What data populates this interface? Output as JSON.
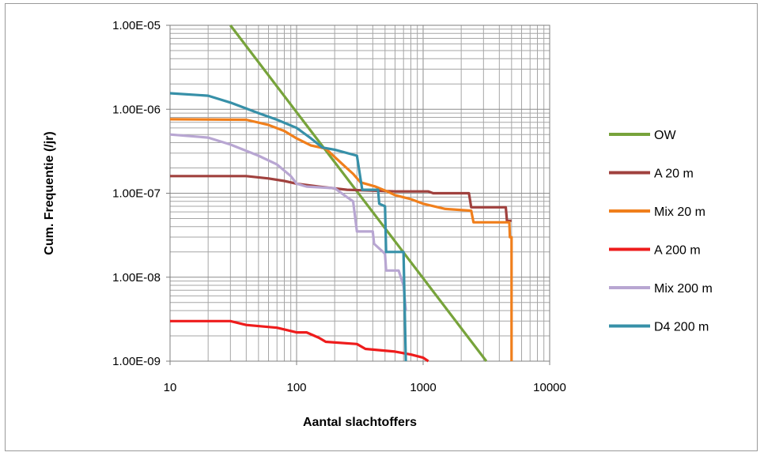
{
  "chart_data": {
    "type": "line",
    "title": "",
    "xlabel": "Aantal slachtoffers",
    "ylabel": "Cum. Frequentie (/jr)",
    "x_scale": "log",
    "y_scale": "log",
    "xlim": [
      10,
      10000
    ],
    "ylim": [
      1e-09,
      1e-05
    ],
    "x_ticks": [
      10,
      100,
      1000,
      10000
    ],
    "x_tick_labels": [
      "10",
      "100",
      "1000",
      "10000"
    ],
    "y_ticks": [
      1e-05,
      1e-06,
      1e-07,
      1e-08,
      1e-09
    ],
    "y_tick_labels": [
      "1.00E-05",
      "1.00E-06",
      "1.00E-07",
      "1.00E-08",
      "1.00E-09"
    ],
    "grid": "major and minor",
    "legend_position": "right",
    "series": [
      {
        "name": "OW",
        "color": "#77a33b",
        "points": [
          [
            30,
            1e-05
          ],
          [
            3160,
            9e-10
          ]
        ]
      },
      {
        "name": "A 20 m",
        "color": "#a0413e",
        "points": [
          [
            10,
            1.6e-07
          ],
          [
            40,
            1.6e-07
          ],
          [
            60,
            1.5e-07
          ],
          [
            80,
            1.4e-07
          ],
          [
            100,
            1.3e-07
          ],
          [
            150,
            1.2e-07
          ],
          [
            250,
            1.1e-07
          ],
          [
            600,
            1.05e-07
          ],
          [
            1100,
            1.05e-07
          ],
          [
            1200,
            1e-07
          ],
          [
            2300,
            1e-07
          ],
          [
            2400,
            6.8e-08
          ],
          [
            4500,
            6.8e-08
          ],
          [
            4600,
            4.7e-08
          ],
          [
            5000,
            4.7e-08
          ]
        ]
      },
      {
        "name": "Mix 20 m",
        "color": "#f07f1c",
        "points": [
          [
            10,
            7.6e-07
          ],
          [
            40,
            7.5e-07
          ],
          [
            60,
            6.5e-07
          ],
          [
            80,
            5.5e-07
          ],
          [
            100,
            4.5e-07
          ],
          [
            130,
            3.7e-07
          ],
          [
            170,
            3.4e-07
          ],
          [
            200,
            2.7e-07
          ],
          [
            240,
            2.1e-07
          ],
          [
            280,
            1.7e-07
          ],
          [
            320,
            1.35e-07
          ],
          [
            420,
            1.2e-07
          ],
          [
            520,
            1.05e-07
          ],
          [
            600,
            9.5e-08
          ],
          [
            800,
            8.5e-08
          ],
          [
            1000,
            7.5e-08
          ],
          [
            1500,
            6.5e-08
          ],
          [
            2400,
            6.2e-08
          ],
          [
            2500,
            4.5e-08
          ],
          [
            4800,
            4.5e-08
          ],
          [
            4850,
            3e-08
          ],
          [
            5000,
            3e-08
          ],
          [
            5000,
            9.5e-10
          ]
        ]
      },
      {
        "name": "A 200 m",
        "color": "#ee1c1c",
        "points": [
          [
            10,
            3e-09
          ],
          [
            30,
            3e-09
          ],
          [
            40,
            2.7e-09
          ],
          [
            70,
            2.5e-09
          ],
          [
            100,
            2.2e-09
          ],
          [
            120,
            2.2e-09
          ],
          [
            150,
            1.9e-09
          ],
          [
            170,
            1.7e-09
          ],
          [
            300,
            1.6e-09
          ],
          [
            350,
            1.4e-09
          ],
          [
            600,
            1.3e-09
          ],
          [
            800,
            1.2e-09
          ],
          [
            1000,
            1.1e-09
          ],
          [
            1100,
            1e-09
          ]
        ]
      },
      {
        "name": "Mix 200 m",
        "color": "#b8a6d2",
        "points": [
          [
            10,
            5e-07
          ],
          [
            20,
            4.6e-07
          ],
          [
            30,
            3.8e-07
          ],
          [
            50,
            2.8e-07
          ],
          [
            70,
            2.2e-07
          ],
          [
            90,
            1.6e-07
          ],
          [
            100,
            1.3e-07
          ],
          [
            120,
            1.2e-07
          ],
          [
            200,
            1.15e-07
          ],
          [
            250,
            9e-08
          ],
          [
            280,
            8e-08
          ],
          [
            300,
            3.5e-08
          ],
          [
            400,
            3.5e-08
          ],
          [
            410,
            2.5e-08
          ],
          [
            500,
            1.9e-08
          ],
          [
            510,
            1.2e-08
          ],
          [
            640,
            1.2e-08
          ],
          [
            700,
            8e-09
          ],
          [
            730,
            4e-09
          ]
        ]
      },
      {
        "name": "D4 200 m",
        "color": "#3790a8",
        "points": [
          [
            10,
            1.55e-06
          ],
          [
            20,
            1.45e-06
          ],
          [
            30,
            1.2e-06
          ],
          [
            50,
            9e-07
          ],
          [
            70,
            7.5e-07
          ],
          [
            100,
            6e-07
          ],
          [
            130,
            4.5e-07
          ],
          [
            160,
            3.5e-07
          ],
          [
            200,
            3.3e-07
          ],
          [
            300,
            2.8e-07
          ],
          [
            330,
            1.1e-07
          ],
          [
            440,
            1.1e-07
          ],
          [
            450,
            7.5e-08
          ],
          [
            500,
            7e-08
          ],
          [
            510,
            2e-08
          ],
          [
            700,
            2e-08
          ],
          [
            730,
            1e-09
          ]
        ]
      }
    ]
  }
}
